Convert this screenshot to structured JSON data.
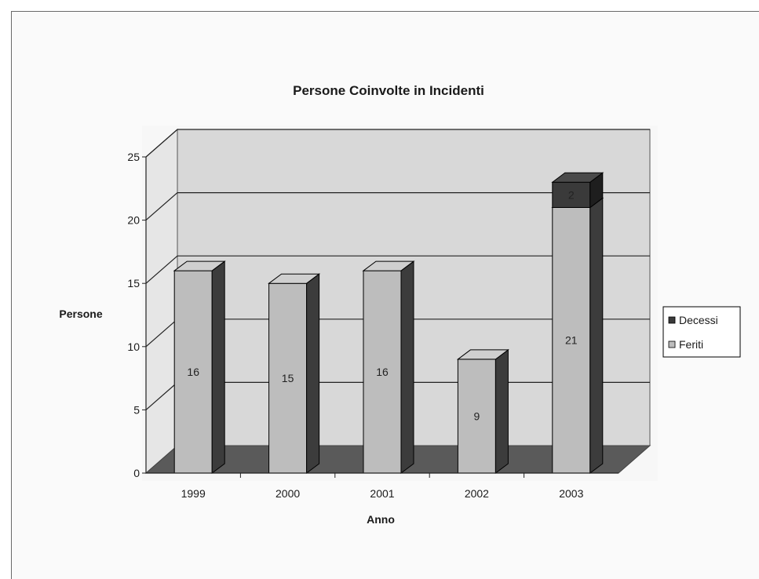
{
  "chart_data": {
    "type": "bar",
    "stacked": true,
    "three_d": true,
    "title": "Persone Coinvolte in Incidenti",
    "xlabel": "Anno",
    "ylabel": "Persone",
    "categories": [
      "1999",
      "2000",
      "2001",
      "2002",
      "2003"
    ],
    "series": [
      {
        "name": "Feriti",
        "values": [
          16,
          15,
          16,
          9,
          21
        ],
        "color": "#bdbdbd"
      },
      {
        "name": "Decessi",
        "values": [
          0,
          0,
          0,
          0,
          2
        ],
        "color": "#3a3a3a"
      }
    ],
    "ylim": [
      0,
      25
    ],
    "yticks": [
      "0",
      "5",
      "10",
      "15",
      "20",
      "25"
    ],
    "grid": true,
    "legend_position": "right",
    "colors": {
      "wall": "#d8d8d8",
      "floor": "#5a5a5a",
      "bar_side": "#3c3c3c",
      "plot_bg": "#f7f7f7"
    }
  }
}
